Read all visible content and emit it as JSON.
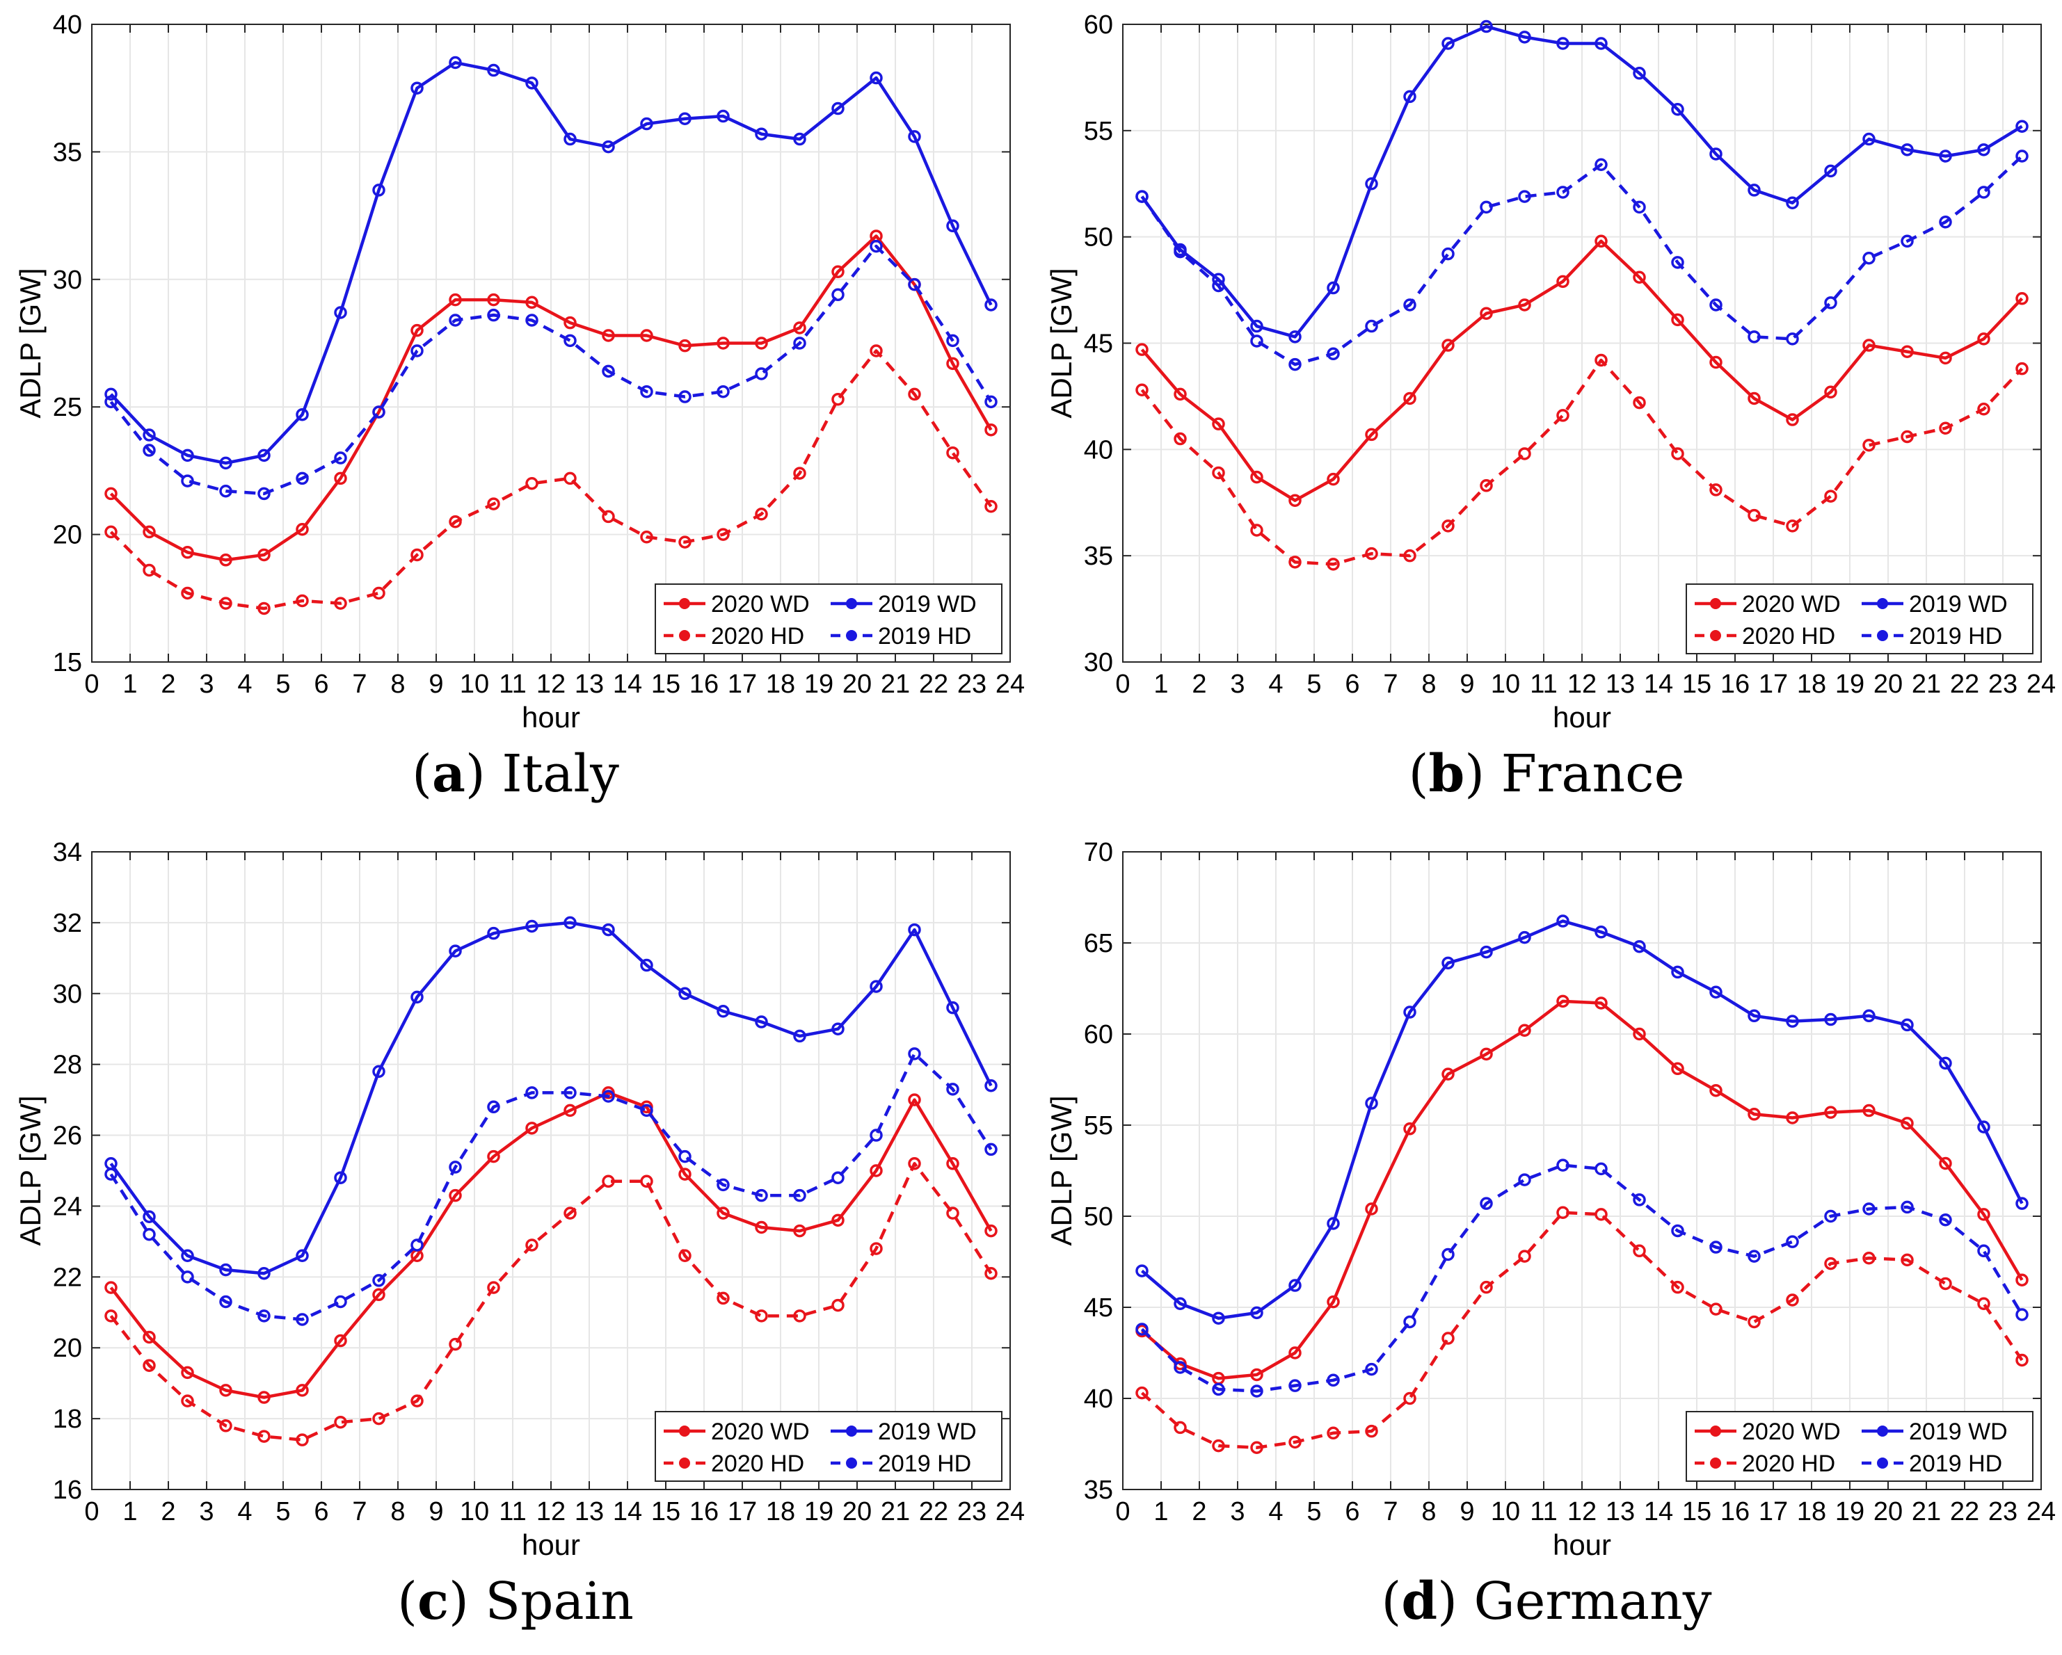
{
  "legend_labels": [
    "2020 WD",
    "2019 WD",
    "2020 HD",
    "2019 HD"
  ],
  "colors": {
    "y2020": "#e8141b",
    "y2019": "#1a18e0"
  },
  "chart_data": [
    {
      "type": "line",
      "panel_letter": "a",
      "title": "Italy",
      "xlabel": "hour",
      "ylabel": "ADLP [GW]",
      "xlim": [
        0,
        24
      ],
      "ylim": [
        15,
        40
      ],
      "yticks": [
        15,
        20,
        25,
        30,
        35,
        40
      ],
      "xticks": [
        0,
        1,
        2,
        3,
        4,
        5,
        6,
        7,
        8,
        9,
        10,
        11,
        12,
        13,
        14,
        15,
        16,
        17,
        18,
        19,
        20,
        21,
        22,
        23,
        24
      ],
      "x": [
        0.5,
        1.5,
        2.5,
        3.5,
        4.5,
        5.5,
        6.5,
        7.5,
        8.5,
        9.5,
        10.5,
        11.5,
        12.5,
        13.5,
        14.5,
        15.5,
        16.5,
        17.5,
        18.5,
        19.5,
        20.5,
        21.5,
        22.5,
        23.5
      ],
      "series": [
        {
          "name": "2020 WD",
          "values": [
            21.6,
            20.1,
            19.3,
            19.0,
            19.2,
            20.2,
            22.2,
            24.8,
            28.0,
            29.2,
            29.2,
            29.1,
            28.3,
            27.8,
            27.8,
            27.4,
            27.5,
            27.5,
            28.1,
            30.3,
            31.7,
            29.8,
            26.7,
            24.1
          ]
        },
        {
          "name": "2019 WD",
          "values": [
            25.5,
            23.9,
            23.1,
            22.8,
            23.1,
            24.7,
            28.7,
            33.5,
            37.5,
            38.5,
            38.2,
            37.7,
            35.5,
            35.2,
            36.1,
            36.3,
            36.4,
            35.7,
            35.5,
            36.7,
            37.9,
            35.6,
            32.1,
            29.0
          ]
        },
        {
          "name": "2020 HD",
          "values": [
            20.1,
            18.6,
            17.7,
            17.3,
            17.1,
            17.4,
            17.3,
            17.7,
            19.2,
            20.5,
            21.2,
            22.0,
            22.2,
            20.7,
            19.9,
            19.7,
            20.0,
            20.8,
            22.4,
            25.3,
            27.2,
            25.5,
            23.2,
            21.1
          ]
        },
        {
          "name": "2019 HD",
          "values": [
            25.2,
            23.3,
            22.1,
            21.7,
            21.6,
            22.2,
            23.0,
            24.8,
            27.2,
            28.4,
            28.6,
            28.4,
            27.6,
            26.4,
            25.6,
            25.4,
            25.6,
            26.3,
            27.5,
            29.4,
            31.3,
            29.8,
            27.6,
            25.2
          ]
        }
      ]
    },
    {
      "type": "line",
      "panel_letter": "b",
      "title": "France",
      "xlabel": "hour",
      "ylabel": "ADLP [GW]",
      "xlim": [
        0,
        24
      ],
      "ylim": [
        30,
        60
      ],
      "yticks": [
        30,
        35,
        40,
        45,
        50,
        55,
        60
      ],
      "xticks": [
        0,
        1,
        2,
        3,
        4,
        5,
        6,
        7,
        8,
        9,
        10,
        11,
        12,
        13,
        14,
        15,
        16,
        17,
        18,
        19,
        20,
        21,
        22,
        23,
        24
      ],
      "x": [
        0.5,
        1.5,
        2.5,
        3.5,
        4.5,
        5.5,
        6.5,
        7.5,
        8.5,
        9.5,
        10.5,
        11.5,
        12.5,
        13.5,
        14.5,
        15.5,
        16.5,
        17.5,
        18.5,
        19.5,
        20.5,
        21.5,
        22.5,
        23.5
      ],
      "series": [
        {
          "name": "2020 WD",
          "values": [
            44.7,
            42.6,
            41.2,
            38.7,
            37.6,
            38.6,
            40.7,
            42.4,
            44.9,
            46.4,
            46.8,
            47.9,
            49.8,
            48.1,
            46.1,
            44.1,
            42.4,
            41.4,
            42.7,
            44.9,
            44.6,
            44.3,
            45.2,
            47.1
          ]
        },
        {
          "name": "2019 WD",
          "values": [
            51.9,
            49.4,
            48.0,
            45.8,
            45.3,
            47.6,
            52.5,
            56.6,
            59.1,
            59.9,
            59.4,
            59.1,
            59.1,
            57.7,
            56.0,
            53.9,
            52.2,
            51.6,
            53.1,
            54.6,
            54.1,
            53.8,
            54.1,
            55.2
          ]
        },
        {
          "name": "2020 HD",
          "values": [
            42.8,
            40.5,
            38.9,
            36.2,
            34.7,
            34.6,
            35.1,
            35.0,
            36.4,
            38.3,
            39.8,
            41.6,
            44.2,
            42.2,
            39.8,
            38.1,
            36.9,
            36.4,
            37.8,
            40.2,
            40.6,
            41.0,
            41.9,
            43.8
          ]
        },
        {
          "name": "2019 HD",
          "values": [
            51.9,
            49.3,
            47.7,
            45.1,
            44.0,
            44.5,
            45.8,
            46.8,
            49.2,
            51.4,
            51.9,
            52.1,
            53.4,
            51.4,
            48.8,
            46.8,
            45.3,
            45.2,
            46.9,
            49.0,
            49.8,
            50.7,
            52.1,
            53.8
          ]
        }
      ]
    },
    {
      "type": "line",
      "panel_letter": "c",
      "title": "Spain",
      "xlabel": "hour",
      "ylabel": "ADLP [GW]",
      "xlim": [
        0,
        24
      ],
      "ylim": [
        16,
        34
      ],
      "yticks": [
        16,
        18,
        20,
        22,
        24,
        26,
        28,
        30,
        32,
        34
      ],
      "xticks": [
        0,
        1,
        2,
        3,
        4,
        5,
        6,
        7,
        8,
        9,
        10,
        11,
        12,
        13,
        14,
        15,
        16,
        17,
        18,
        19,
        20,
        21,
        22,
        23,
        24
      ],
      "x": [
        0.5,
        1.5,
        2.5,
        3.5,
        4.5,
        5.5,
        6.5,
        7.5,
        8.5,
        9.5,
        10.5,
        11.5,
        12.5,
        13.5,
        14.5,
        15.5,
        16.5,
        17.5,
        18.5,
        19.5,
        20.5,
        21.5,
        22.5,
        23.5
      ],
      "series": [
        {
          "name": "2020 WD",
          "values": [
            21.7,
            20.3,
            19.3,
            18.8,
            18.6,
            18.8,
            20.2,
            21.5,
            22.6,
            24.3,
            25.4,
            26.2,
            26.7,
            27.2,
            26.8,
            24.9,
            23.8,
            23.4,
            23.3,
            23.6,
            25.0,
            27.0,
            25.2,
            23.3
          ]
        },
        {
          "name": "2019 WD",
          "values": [
            25.2,
            23.7,
            22.6,
            22.2,
            22.1,
            22.6,
            24.8,
            27.8,
            29.9,
            31.2,
            31.7,
            31.9,
            32.0,
            31.8,
            30.8,
            30.0,
            29.5,
            29.2,
            28.8,
            29.0,
            30.2,
            31.8,
            29.6,
            27.4
          ]
        },
        {
          "name": "2020 HD",
          "values": [
            20.9,
            19.5,
            18.5,
            17.8,
            17.5,
            17.4,
            17.9,
            18.0,
            18.5,
            20.1,
            21.7,
            22.9,
            23.8,
            24.7,
            24.7,
            22.6,
            21.4,
            20.9,
            20.9,
            21.2,
            22.8,
            25.2,
            23.8,
            22.1
          ]
        },
        {
          "name": "2019 HD",
          "values": [
            24.9,
            23.2,
            22.0,
            21.3,
            20.9,
            20.8,
            21.3,
            21.9,
            22.9,
            25.1,
            26.8,
            27.2,
            27.2,
            27.1,
            26.7,
            25.4,
            24.6,
            24.3,
            24.3,
            24.8,
            26.0,
            28.3,
            27.3,
            25.6
          ]
        }
      ]
    },
    {
      "type": "line",
      "panel_letter": "d",
      "title": "Germany",
      "xlabel": "hour",
      "ylabel": "ADLP [GW]",
      "xlim": [
        0,
        24
      ],
      "ylim": [
        35,
        70
      ],
      "yticks": [
        35,
        40,
        45,
        50,
        55,
        60,
        65,
        70
      ],
      "xticks": [
        0,
        1,
        2,
        3,
        4,
        5,
        6,
        7,
        8,
        9,
        10,
        11,
        12,
        13,
        14,
        15,
        16,
        17,
        18,
        19,
        20,
        21,
        22,
        23,
        24
      ],
      "x": [
        0.5,
        1.5,
        2.5,
        3.5,
        4.5,
        5.5,
        6.5,
        7.5,
        8.5,
        9.5,
        10.5,
        11.5,
        12.5,
        13.5,
        14.5,
        15.5,
        16.5,
        17.5,
        18.5,
        19.5,
        20.5,
        21.5,
        22.5,
        23.5
      ],
      "series": [
        {
          "name": "2020 WD",
          "values": [
            43.7,
            41.9,
            41.1,
            41.3,
            42.5,
            45.3,
            50.4,
            54.8,
            57.8,
            58.9,
            60.2,
            61.8,
            61.7,
            60.0,
            58.1,
            56.9,
            55.6,
            55.4,
            55.7,
            55.8,
            55.1,
            52.9,
            50.1,
            46.5
          ]
        },
        {
          "name": "2019 WD",
          "values": [
            47.0,
            45.2,
            44.4,
            44.7,
            46.2,
            49.6,
            56.2,
            61.2,
            63.9,
            64.5,
            65.3,
            66.2,
            65.6,
            64.8,
            63.4,
            62.3,
            61.0,
            60.7,
            60.8,
            61.0,
            60.5,
            58.4,
            54.9,
            50.7
          ]
        },
        {
          "name": "2020 HD",
          "values": [
            40.3,
            38.4,
            37.4,
            37.3,
            37.6,
            38.1,
            38.2,
            40.0,
            43.3,
            46.1,
            47.8,
            50.2,
            50.1,
            48.1,
            46.1,
            44.9,
            44.2,
            45.4,
            47.4,
            47.7,
            47.6,
            46.3,
            45.2,
            42.1
          ]
        },
        {
          "name": "2019 HD",
          "values": [
            43.8,
            41.7,
            40.5,
            40.4,
            40.7,
            41.0,
            41.6,
            44.2,
            47.9,
            50.7,
            52.0,
            52.8,
            52.6,
            50.9,
            49.2,
            48.3,
            47.8,
            48.6,
            50.0,
            50.4,
            50.5,
            49.8,
            48.1,
            44.6
          ]
        }
      ]
    }
  ]
}
